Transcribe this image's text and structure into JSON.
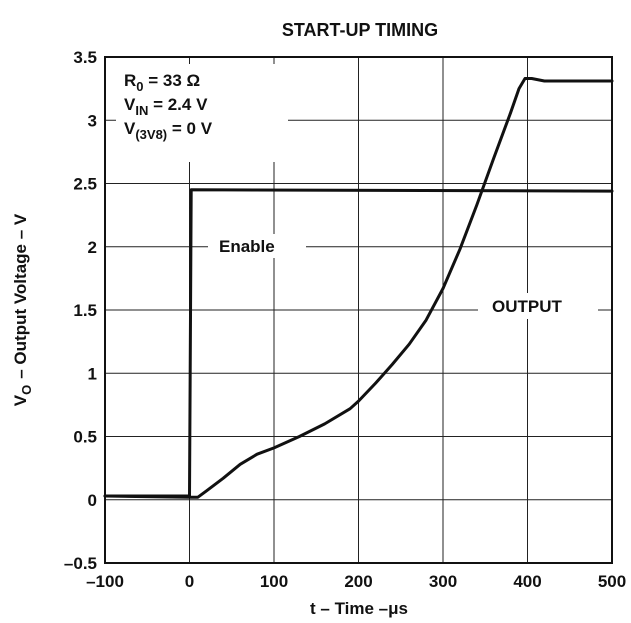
{
  "chart_data": {
    "type": "line",
    "title": "START-UP TIMING",
    "xlabel": "t – Time –μs",
    "ylabel": {
      "main": "V",
      "sub": "O",
      "rest": "– Output Voltage – V"
    },
    "xlim": [
      -100,
      500
    ],
    "ylim": [
      -0.5,
      3.5
    ],
    "x_ticks": [
      -100,
      0,
      100,
      200,
      300,
      400,
      500
    ],
    "x_tick_labels": [
      "–100",
      "0",
      "100",
      "200",
      "300",
      "400",
      "500"
    ],
    "y_ticks": [
      -0.5,
      0,
      0.5,
      1,
      1.5,
      2,
      2.5,
      3,
      3.5
    ],
    "y_tick_labels": [
      "–0.5",
      "0",
      "0.5",
      "1",
      "1.5",
      "2",
      "2.5",
      "3",
      "3.5"
    ],
    "grid": true,
    "conditions": [
      {
        "main": "R",
        "sub": "0",
        "rest": " = 33 Ω"
      },
      {
        "main": "V",
        "sub": "IN",
        "rest": " = 2.4 V"
      },
      {
        "main": "V",
        "sub": "(3V8)",
        "rest": " = 0 V"
      }
    ],
    "series": [
      {
        "name": "Enable",
        "x": [
          -100,
          0,
          0,
          2,
          500
        ],
        "y": [
          0.03,
          0.03,
          0.03,
          2.45,
          2.44
        ]
      },
      {
        "name": "OUTPUT",
        "x": [
          -100,
          0,
          10,
          20,
          40,
          60,
          80,
          100,
          130,
          160,
          190,
          200,
          220,
          240,
          260,
          280,
          300,
          320,
          340,
          360,
          380,
          390,
          397,
          405,
          420,
          450,
          500
        ],
        "y": [
          0.03,
          0.02,
          0.02,
          0.07,
          0.17,
          0.28,
          0.36,
          0.41,
          0.5,
          0.6,
          0.72,
          0.78,
          0.92,
          1.07,
          1.23,
          1.42,
          1.67,
          1.98,
          2.33,
          2.7,
          3.06,
          3.25,
          3.33,
          3.33,
          3.31,
          3.31,
          3.31
        ]
      }
    ],
    "series_labels": [
      "Enable",
      "OUTPUT"
    ]
  }
}
